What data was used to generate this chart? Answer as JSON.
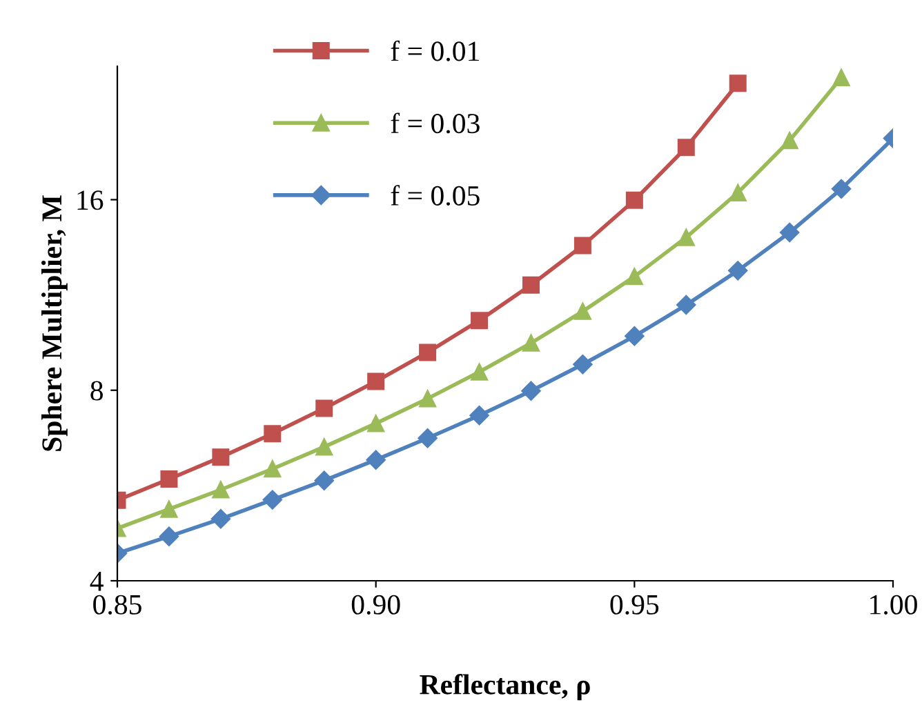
{
  "chart_data": {
    "type": "line",
    "xlabel": "Reflectance, ρ",
    "ylabel": "Sphere Multiplier, M",
    "log": "y",
    "xlim": [
      0.85,
      1.0
    ],
    "xticks": [
      {
        "value": 0.85,
        "label": "0.85"
      },
      {
        "value": 0.9,
        "label": "0.90"
      },
      {
        "value": 0.95,
        "label": "0.95"
      },
      {
        "value": 1.0,
        "label": "1.00"
      }
    ],
    "ylim": [
      4,
      26
    ],
    "yticks": [
      4,
      8,
      16
    ],
    "grid": false,
    "legend": "top left",
    "series": [
      {
        "name": "f = 0.01",
        "color": "#c0504d",
        "marker": "square",
        "x": [
          0.85,
          0.86,
          0.87,
          0.88,
          0.89,
          0.9,
          0.91,
          0.92,
          0.93,
          0.94,
          0.95,
          0.96,
          0.97
        ],
        "values": [
          5.36,
          5.79,
          6.27,
          6.83,
          7.49,
          8.26,
          9.18,
          10.31,
          11.73,
          13.54,
          15.97,
          19.35,
          24.43
        ]
      },
      {
        "name": "f = 0.03",
        "color": "#9bbb59",
        "marker": "triangle",
        "x": [
          0.85,
          0.86,
          0.87,
          0.88,
          0.89,
          0.9,
          0.91,
          0.92,
          0.93,
          0.94,
          0.95,
          0.96,
          0.97,
          0.98,
          0.99
        ],
        "values": [
          4.84,
          5.19,
          5.57,
          6.01,
          6.51,
          7.09,
          7.76,
          8.55,
          9.5,
          10.66,
          12.1,
          13.95,
          16.41,
          19.84,
          24.94
        ]
      },
      {
        "name": "f = 0.05",
        "color": "#4f81bd",
        "marker": "diamond",
        "x": [
          0.85,
          0.86,
          0.87,
          0.88,
          0.89,
          0.9,
          0.91,
          0.92,
          0.93,
          0.94,
          0.95,
          0.96,
          0.97,
          0.98,
          0.99,
          1.0
        ],
        "values": [
          4.42,
          4.7,
          5.01,
          5.37,
          5.76,
          6.21,
          6.72,
          7.3,
          7.98,
          8.79,
          9.74,
          10.91,
          12.36,
          14.2,
          16.64,
          20.0
        ]
      }
    ]
  }
}
